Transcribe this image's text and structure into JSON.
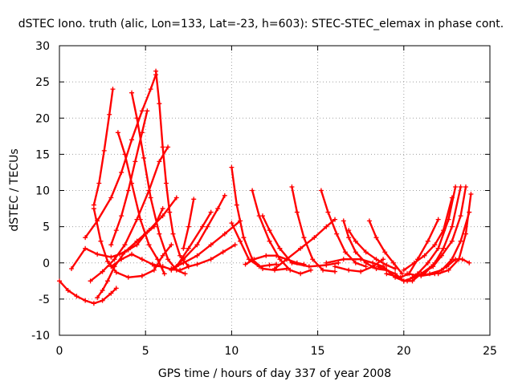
{
  "chart_data": {
    "type": "scatter",
    "title": "dSTEC Iono. truth (alic, Lon=133, Lat=-23, h=603): STEC-STEC_elemax in phase cont.",
    "xlabel": "GPS time / hours of day 337 of year 2008",
    "ylabel": "dSTEC  / TECUs",
    "xlim": [
      0,
      25
    ],
    "ylim": [
      -10,
      30
    ],
    "xticks": [
      0,
      5,
      10,
      15,
      20,
      25
    ],
    "yticks": [
      -10,
      -5,
      0,
      5,
      10,
      15,
      20,
      25,
      30
    ],
    "grid": true,
    "color": "#ff0000",
    "marker": "plus",
    "series": [
      {
        "x": [
          0.0,
          0.5,
          1.0,
          1.5,
          2.0,
          2.5,
          3.0,
          3.3
        ],
        "y": [
          -2.5,
          -3.8,
          -4.6,
          -5.2,
          -5.6,
          -5.2,
          -4.2,
          -3.5
        ]
      },
      {
        "x": [
          2.0,
          2.3,
          2.6,
          2.9,
          3.1
        ],
        "y": [
          8.0,
          11.0,
          15.5,
          20.5,
          24.0
        ]
      },
      {
        "x": [
          2.0,
          2.4,
          2.8,
          3.3,
          4.0,
          4.8,
          5.5,
          6.0,
          6.5
        ],
        "y": [
          7.5,
          3.0,
          0.2,
          -1.3,
          -2.0,
          -1.8,
          -1.0,
          1.0,
          2.5
        ]
      },
      {
        "x": [
          1.5,
          2.2,
          3.0,
          3.6,
          4.2,
          4.8,
          5.3,
          5.6
        ],
        "y": [
          3.5,
          5.8,
          9.0,
          12.5,
          17.0,
          21.0,
          24.0,
          26.0
        ]
      },
      {
        "x": [
          2.2,
          2.5,
          2.8,
          3.2,
          3.8,
          4.5,
          5.2,
          6.0,
          6.8
        ],
        "y": [
          -4.8,
          -3.8,
          -2.5,
          -0.5,
          1.5,
          3.0,
          4.5,
          6.5,
          9.0
        ]
      },
      {
        "x": [
          1.8,
          2.5,
          3.2,
          3.8,
          4.5,
          5.2,
          5.8,
          6.3
        ],
        "y": [
          -2.5,
          -1.2,
          0.5,
          2.5,
          6.0,
          10.0,
          14.0,
          16.0
        ]
      },
      {
        "x": [
          0.7,
          1.5,
          2.2,
          3.0,
          3.5,
          4.0,
          4.5,
          5.0,
          5.5,
          6.0
        ],
        "y": [
          -0.8,
          2.0,
          1.2,
          0.8,
          1.2,
          1.8,
          2.5,
          4.0,
          5.0,
          7.5
        ]
      },
      {
        "x": [
          3.4,
          3.8,
          4.2,
          4.7,
          5.2,
          5.7,
          6.1
        ],
        "y": [
          18.0,
          15.0,
          11.0,
          6.0,
          2.5,
          0.5,
          -1.5
        ]
      },
      {
        "x": [
          4.2,
          4.5,
          4.9,
          5.3,
          5.8,
          6.3,
          6.8,
          7.3
        ],
        "y": [
          23.5,
          20.0,
          14.5,
          9.0,
          4.0,
          0.5,
          -1.0,
          -1.5
        ]
      },
      {
        "x": [
          5.6,
          5.8,
          6.0,
          6.2,
          6.4,
          6.6,
          7.0,
          7.5
        ],
        "y": [
          26.5,
          22.0,
          16.0,
          11.0,
          7.0,
          4.0,
          1.0,
          -0.5
        ]
      },
      {
        "x": [
          3.0,
          3.3,
          3.6,
          4.0,
          4.4,
          4.8,
          5.1
        ],
        "y": [
          2.5,
          4.5,
          6.5,
          10.0,
          14.0,
          18.0,
          21.0
        ]
      },
      {
        "x": [
          3.0,
          3.6,
          4.2,
          4.8,
          5.4,
          6.0
        ],
        "y": [
          -0.5,
          0.5,
          1.2,
          0.5,
          -0.2,
          -0.5
        ]
      },
      {
        "x": [
          5.5,
          6.0,
          6.5,
          7.0,
          7.5,
          8.0,
          8.8,
          9.5,
          10.2
        ],
        "y": [
          -0.4,
          -0.5,
          -0.9,
          -1.0,
          -0.5,
          -0.2,
          0.5,
          1.5,
          2.5
        ]
      },
      {
        "x": [
          6.5,
          7.2,
          8.0,
          8.8,
          9.6,
          10.5
        ],
        "y": [
          -0.8,
          0.0,
          1.0,
          2.5,
          4.0,
          5.8
        ]
      },
      {
        "x": [
          6.5,
          7.2,
          8.0,
          8.6,
          9.2,
          9.6
        ],
        "y": [
          -1.0,
          0.5,
          2.5,
          5.0,
          7.5,
          9.3
        ]
      },
      {
        "x": [
          7.2,
          7.5,
          7.8
        ],
        "y": [
          2.0,
          5.0,
          8.8
        ]
      },
      {
        "x": [
          6.8,
          7.5,
          8.3,
          8.8
        ],
        "y": [
          -0.5,
          2.0,
          5.0,
          7.0
        ]
      },
      {
        "x": [
          10.0,
          10.3,
          10.7,
          11.2,
          11.8,
          12.5,
          13.2
        ],
        "y": [
          13.2,
          8.0,
          3.5,
          0.5,
          -0.8,
          -1.0,
          -0.8
        ]
      },
      {
        "x": [
          11.2,
          11.6,
          12.2,
          12.8,
          13.4,
          14.0,
          14.6
        ],
        "y": [
          10.0,
          6.5,
          3.0,
          0.5,
          -1.0,
          -1.5,
          -1.0
        ]
      },
      {
        "x": [
          11.8,
          12.2,
          12.8,
          13.5,
          14.5,
          15.5,
          16.2
        ],
        "y": [
          6.5,
          4.5,
          2.0,
          0.0,
          -0.5,
          -0.3,
          0.0
        ]
      },
      {
        "x": [
          10.0,
          10.5,
          11.0,
          11.6,
          12.2,
          12.6
        ],
        "y": [
          5.5,
          3.0,
          0.5,
          -0.5,
          -0.3,
          -0.2
        ]
      },
      {
        "x": [
          10.8,
          11.3,
          12.0,
          12.6,
          13.2,
          13.8,
          14.2
        ],
        "y": [
          -0.2,
          0.5,
          1.0,
          1.0,
          0.5,
          0.0,
          -0.2
        ]
      },
      {
        "x": [
          13.5,
          13.8,
          14.2,
          14.7,
          15.3,
          16.0
        ],
        "y": [
          10.5,
          7.0,
          3.5,
          0.5,
          -1.0,
          -1.2
        ]
      },
      {
        "x": [
          15.2,
          15.6,
          16.1,
          16.6,
          17.2,
          17.8
        ],
        "y": [
          10.0,
          7.0,
          4.0,
          1.5,
          0.0,
          -0.5
        ]
      },
      {
        "x": [
          12.5,
          13.2,
          14.0,
          14.8,
          15.5,
          16.0
        ],
        "y": [
          -0.8,
          0.5,
          2.0,
          3.5,
          5.0,
          6.0
        ]
      },
      {
        "x": [
          16.5,
          16.8,
          17.2,
          17.8,
          18.4,
          19.0
        ],
        "y": [
          5.8,
          3.5,
          1.5,
          0.0,
          -0.8,
          -1.0
        ]
      },
      {
        "x": [
          16.8,
          17.2,
          17.8,
          18.4,
          19.0,
          19.5
        ],
        "y": [
          4.5,
          3.0,
          1.5,
          0.5,
          -0.3,
          -0.8
        ]
      },
      {
        "x": [
          18.0,
          18.4,
          18.9,
          19.4,
          19.9
        ],
        "y": [
          5.8,
          3.5,
          1.5,
          0.0,
          -1.5
        ]
      },
      {
        "x": [
          15.5,
          16.5,
          17.5,
          18.2,
          18.8
        ],
        "y": [
          0.0,
          0.5,
          0.5,
          0.0,
          -0.5
        ]
      },
      {
        "x": [
          16.0,
          16.8,
          17.5,
          18.2,
          18.8
        ],
        "y": [
          -0.5,
          -1.0,
          -1.2,
          -0.5,
          0.5
        ]
      },
      {
        "x": [
          18.5,
          19.0,
          19.5,
          20.0,
          20.5,
          21.0,
          21.6
        ],
        "y": [
          -0.5,
          -1.0,
          -1.5,
          -2.5,
          -2.5,
          -1.5,
          -0.5
        ]
      },
      {
        "x": [
          19.0,
          19.8,
          20.3,
          20.8,
          21.4,
          22.0
        ],
        "y": [
          -1.5,
          -2.0,
          -1.5,
          0.5,
          3.0,
          6.0
        ]
      },
      {
        "x": [
          20.0,
          20.6,
          21.2,
          21.8,
          22.3,
          22.8
        ],
        "y": [
          -1.0,
          0.0,
          1.0,
          2.5,
          4.5,
          9.0
        ]
      },
      {
        "x": [
          20.2,
          20.8,
          21.4,
          22.0,
          22.6,
          23.0
        ],
        "y": [
          -2.5,
          -1.5,
          0.0,
          2.0,
          6.0,
          10.5
        ]
      },
      {
        "x": [
          20.5,
          21.2,
          21.8,
          22.3,
          22.8,
          23.3
        ],
        "y": [
          -2.0,
          -1.5,
          0.0,
          2.0,
          5.0,
          10.5
        ]
      },
      {
        "x": [
          21.0,
          21.7,
          22.2,
          22.8,
          23.3,
          23.6
        ],
        "y": [
          -1.5,
          -0.5,
          1.0,
          3.0,
          6.5,
          10.5
        ]
      },
      {
        "x": [
          21.5,
          22.2,
          22.8,
          23.3,
          23.8
        ],
        "y": [
          -1.5,
          -1.0,
          0.5,
          3.0,
          7.0
        ]
      },
      {
        "x": [
          22.0,
          22.6,
          23.2,
          23.6,
          23.9
        ],
        "y": [
          -1.5,
          -1.0,
          0.5,
          4.0,
          9.5
        ]
      },
      {
        "x": [
          20.2,
          21.0,
          21.8,
          22.5,
          23.0,
          23.4,
          23.8
        ],
        "y": [
          -1.5,
          -1.8,
          -1.5,
          -0.5,
          0.5,
          0.5,
          0.0
        ]
      },
      {
        "x": [
          18.8,
          19.5,
          20.0,
          20.6
        ],
        "y": [
          -0.5,
          -2.0,
          -2.5,
          -2.0
        ]
      }
    ]
  }
}
